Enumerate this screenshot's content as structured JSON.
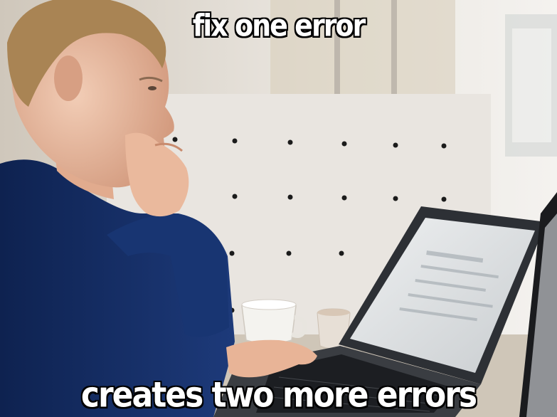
{
  "meme": {
    "top_text": "fix one error",
    "bottom_text": "creates two more errors"
  },
  "colors": {
    "sweater": "#163068",
    "wall": "#e6e2dc",
    "laptop": "#3a3d42",
    "screen": "#dfe2e4",
    "skin": "#e8b9a0"
  }
}
